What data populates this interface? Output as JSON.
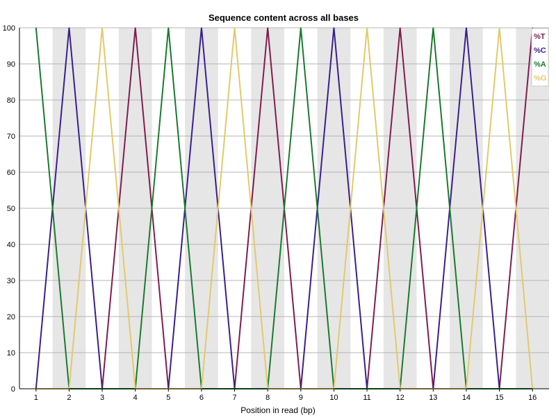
{
  "chart_data": {
    "type": "line",
    "title": "Sequence content across all bases",
    "xlabel": "Position in read (bp)",
    "ylabel": "",
    "ylim": [
      0,
      100
    ],
    "yticks": [
      0,
      10,
      20,
      30,
      40,
      50,
      60,
      70,
      80,
      90,
      100
    ],
    "categories": [
      "1",
      "2",
      "3",
      "4",
      "5",
      "6",
      "7",
      "8",
      "9",
      "10",
      "11",
      "12",
      "13",
      "14",
      "15",
      "16"
    ],
    "grid": true,
    "legend_position": "top-right",
    "series": [
      {
        "name": "%T",
        "color": "#7f1d4e",
        "values": [
          0,
          0,
          0,
          100,
          0,
          0,
          0,
          100,
          0,
          0,
          0,
          100,
          0,
          0,
          0,
          100
        ]
      },
      {
        "name": "%C",
        "color": "#3a1f8c",
        "values": [
          0,
          100,
          0,
          0,
          0,
          100,
          0,
          0,
          0,
          100,
          0,
          0,
          0,
          100,
          0,
          0
        ]
      },
      {
        "name": "%A",
        "color": "#1a7a2e",
        "values": [
          100,
          0,
          0,
          0,
          100,
          0,
          0,
          0,
          100,
          0,
          0,
          0,
          100,
          0,
          0,
          0
        ]
      },
      {
        "name": "%G",
        "color": "#e3c96a",
        "values": [
          0,
          0,
          100,
          0,
          0,
          0,
          100,
          0,
          0,
          0,
          100,
          0,
          0,
          0,
          100,
          0
        ]
      }
    ]
  }
}
